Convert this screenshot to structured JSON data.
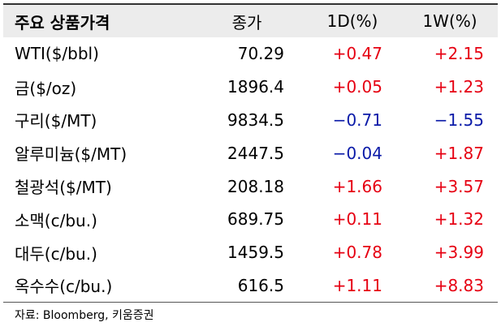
{
  "table": {
    "header": [
      "주요 상품가격",
      "종가",
      "1D(%)",
      "1W(%)"
    ],
    "rows": [
      [
        "WTI($/bbl)",
        "70.29",
        "+0.47",
        "+2.15"
      ],
      [
        "금($/oz)",
        "1896.4",
        "+0.05",
        "+1.23"
      ],
      [
        "구리($/MT)",
        "9834.5",
        "−0.71",
        "−1.55"
      ],
      [
        "알루미늄($/MT)",
        "2447.5",
        "−0.04",
        "+1.87"
      ],
      [
        "철광석($/MT)",
        "208.18",
        "+1.66",
        "+3.57"
      ],
      [
        "소맥(c/bu.)",
        "689.75",
        "+0.11",
        "+1.32"
      ],
      [
        "대두(c/bu.)",
        "1459.5",
        "+0.78",
        "+3.99"
      ],
      [
        "옥수수(c/bu.)",
        "616.5",
        "+1.11",
        "+8.83"
      ]
    ]
  },
  "source": "자료: Bloomberg, 키움증권"
}
